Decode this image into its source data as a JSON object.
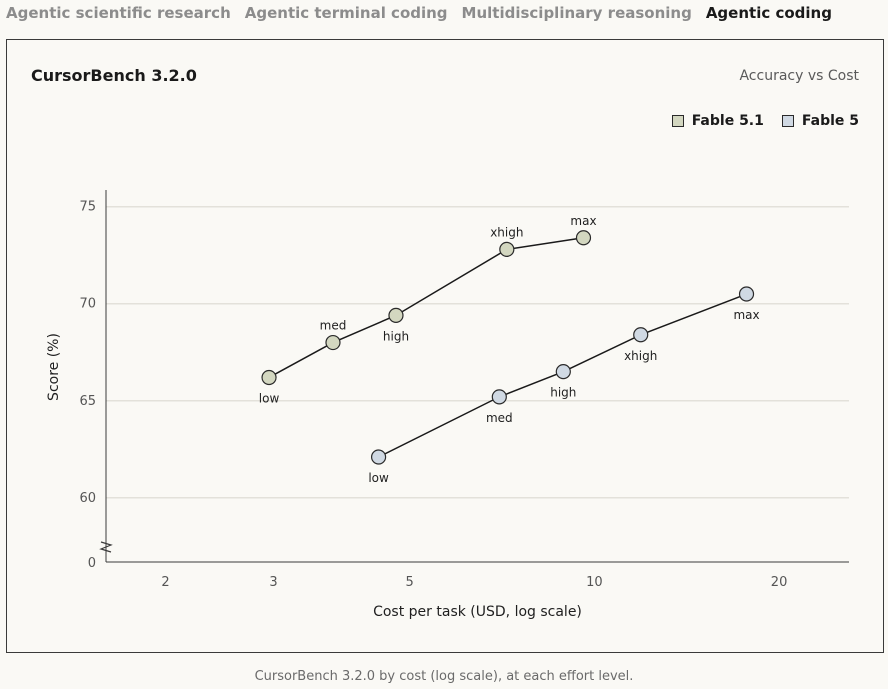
{
  "tabs": [
    {
      "label": "Agentic scientific research",
      "active": false
    },
    {
      "label": "Agentic terminal coding",
      "active": false
    },
    {
      "label": "Multidisciplinary reasoning",
      "active": false
    },
    {
      "label": "Agentic coding",
      "active": true
    }
  ],
  "card": {
    "title": "CursorBench 3.2.0",
    "subtitle": "Accuracy vs Cost"
  },
  "caption": "CursorBench 3.2.0 by cost (log scale), at each effort level.",
  "colors": {
    "fable51": "#d3d7c0",
    "fable5": "#d0d9e3",
    "line": "#1a1a1a",
    "grid": "#e3e1da"
  },
  "chart_data": {
    "type": "line",
    "title": "CursorBench 3.2.0",
    "subtitle": "Accuracy vs Cost",
    "xlabel": "Cost per task (USD, log scale)",
    "ylabel": "Score (%)",
    "xscale": "log",
    "xlim": [
      1.6,
      26
    ],
    "ylim": [
      57,
      75.5
    ],
    "x_ticks": [
      2,
      3,
      5,
      10,
      20
    ],
    "y_ticks": [
      60,
      65,
      70,
      75
    ],
    "y_axis_break": true,
    "y_zero_label": "0",
    "grid": "horizontal",
    "legend_position": "top-right",
    "series": [
      {
        "name": "Fable 5.1",
        "color": "#d3d7c0",
        "points": [
          {
            "label": "low",
            "x": 2.95,
            "y": 66.2,
            "label_pos": "below"
          },
          {
            "label": "med",
            "x": 3.75,
            "y": 68.0,
            "label_pos": "above"
          },
          {
            "label": "high",
            "x": 4.75,
            "y": 69.4,
            "label_pos": "below"
          },
          {
            "label": "xhigh",
            "x": 7.2,
            "y": 72.8,
            "label_pos": "above"
          },
          {
            "label": "max",
            "x": 9.6,
            "y": 73.4,
            "label_pos": "above"
          }
        ]
      },
      {
        "name": "Fable 5",
        "color": "#d0d9e3",
        "points": [
          {
            "label": "low",
            "x": 4.45,
            "y": 62.1,
            "label_pos": "below"
          },
          {
            "label": "med",
            "x": 7.0,
            "y": 65.2,
            "label_pos": "below"
          },
          {
            "label": "high",
            "x": 8.9,
            "y": 66.5,
            "label_pos": "below"
          },
          {
            "label": "xhigh",
            "x": 11.9,
            "y": 68.4,
            "label_pos": "below"
          },
          {
            "label": "max",
            "x": 17.7,
            "y": 70.5,
            "label_pos": "below"
          }
        ]
      }
    ]
  }
}
